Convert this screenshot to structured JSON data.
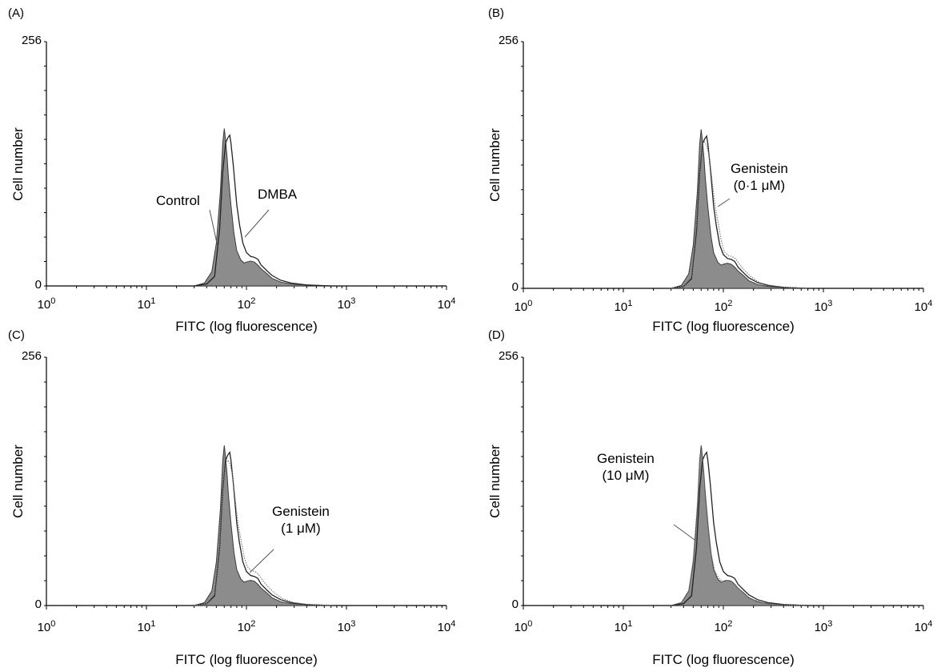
{
  "chart_data": [
    {
      "type": "area",
      "panel_label": "(A)",
      "xlabel": "FITC (log fluorescence)",
      "ylabel": "Cell number",
      "xscale": "log",
      "xlim": [
        1,
        10000
      ],
      "ylim": [
        0,
        256
      ],
      "x_ticks": [
        {
          "base": "10",
          "exp": "0"
        },
        {
          "base": "10",
          "exp": "1"
        },
        {
          "base": "10",
          "exp": "2"
        },
        {
          "base": "10",
          "exp": "3"
        },
        {
          "base": "10",
          "exp": "4"
        }
      ],
      "y_ticks": [
        "256",
        "0"
      ],
      "annotations": [
        {
          "lines": [
            "Control"
          ],
          "points_to": "filled"
        },
        {
          "lines": [
            "DMBA"
          ],
          "points_to": "outline"
        }
      ],
      "series": [
        {
          "name": "Control",
          "style": "filled",
          "x": [
            30,
            38,
            45,
            50,
            55,
            58,
            60,
            62,
            64,
            66,
            70,
            75,
            80,
            88,
            95,
            100,
            110,
            120,
            130,
            140,
            160,
            180,
            220,
            280,
            400,
            700
          ],
          "y": [
            0,
            3,
            15,
            45,
            100,
            150,
            165,
            152,
            135,
            115,
            85,
            55,
            37,
            27,
            24,
            25,
            26,
            25,
            22,
            18,
            13,
            8,
            4,
            2,
            1,
            0
          ]
        },
        {
          "name": "DMBA",
          "style": "outline",
          "x": [
            30,
            40,
            48,
            54,
            58,
            62,
            65,
            68,
            70,
            74,
            80,
            85,
            92,
            100,
            110,
            120,
            130,
            140,
            160,
            180,
            220,
            280,
            400,
            700
          ],
          "y": [
            0,
            2,
            10,
            60,
            120,
            150,
            155,
            158,
            150,
            125,
            85,
            65,
            45,
            35,
            31,
            30,
            28,
            22,
            16,
            11,
            6,
            3,
            1,
            0
          ]
        }
      ]
    },
    {
      "type": "area",
      "panel_label": "(B)",
      "xlabel": "FITC (log fluorescence)",
      "ylabel": "Cell number",
      "xscale": "log",
      "xlim": [
        1,
        10000
      ],
      "ylim": [
        0,
        256
      ],
      "x_ticks": [
        {
          "base": "10",
          "exp": "0"
        },
        {
          "base": "10",
          "exp": "1"
        },
        {
          "base": "10",
          "exp": "2"
        },
        {
          "base": "10",
          "exp": "3"
        },
        {
          "base": "10",
          "exp": "4"
        }
      ],
      "y_ticks": [
        "256",
        "0"
      ],
      "annotations": [
        {
          "lines": [
            "Genistein",
            "(0·1 μM)"
          ],
          "points_to": "dotted"
        }
      ],
      "series": [
        {
          "name": "Control",
          "style": "filled",
          "x": [
            30,
            38,
            45,
            50,
            55,
            58,
            60,
            62,
            64,
            66,
            70,
            75,
            80,
            88,
            95,
            100,
            110,
            120,
            130,
            140,
            160,
            180,
            220,
            280,
            400,
            700
          ],
          "y": [
            0,
            3,
            15,
            45,
            100,
            150,
            165,
            152,
            135,
            115,
            85,
            55,
            37,
            27,
            24,
            25,
            26,
            25,
            22,
            18,
            13,
            8,
            4,
            2,
            1,
            0
          ]
        },
        {
          "name": "DMBA",
          "style": "outline",
          "x": [
            30,
            40,
            48,
            54,
            58,
            62,
            65,
            68,
            70,
            74,
            80,
            85,
            92,
            100,
            110,
            120,
            130,
            140,
            160,
            180,
            220,
            280,
            400,
            700
          ],
          "y": [
            0,
            2,
            10,
            60,
            120,
            150,
            155,
            158,
            150,
            125,
            85,
            65,
            45,
            35,
            31,
            30,
            28,
            22,
            16,
            11,
            6,
            3,
            1,
            0
          ]
        },
        {
          "name": "Genistein (0·1 μM)",
          "style": "dotted",
          "x": [
            30,
            40,
            48,
            54,
            58,
            62,
            65,
            68,
            72,
            76,
            82,
            88,
            95,
            102,
            112,
            122,
            132,
            145,
            165,
            190,
            230,
            300,
            420,
            700
          ],
          "y": [
            0,
            2,
            12,
            65,
            125,
            150,
            152,
            148,
            138,
            118,
            88,
            70,
            50,
            38,
            34,
            33,
            31,
            25,
            18,
            12,
            6,
            3,
            1,
            0
          ]
        }
      ]
    },
    {
      "type": "area",
      "panel_label": "(C)",
      "xlabel": "FITC (log fluorescence)",
      "ylabel": "Cell number",
      "xscale": "log",
      "xlim": [
        1,
        10000
      ],
      "ylim": [
        0,
        256
      ],
      "x_ticks": [
        {
          "base": "10",
          "exp": "0"
        },
        {
          "base": "10",
          "exp": "1"
        },
        {
          "base": "10",
          "exp": "2"
        },
        {
          "base": "10",
          "exp": "3"
        },
        {
          "base": "10",
          "exp": "4"
        }
      ],
      "y_ticks": [
        "256",
        "0"
      ],
      "annotations": [
        {
          "lines": [
            "Genistein",
            "(1 μM)"
          ],
          "points_to": "dotted"
        }
      ],
      "series": [
        {
          "name": "Control",
          "style": "filled",
          "x": [
            30,
            38,
            45,
            50,
            55,
            58,
            60,
            62,
            64,
            66,
            70,
            75,
            80,
            88,
            95,
            100,
            110,
            120,
            130,
            140,
            160,
            180,
            220,
            280,
            400,
            700
          ],
          "y": [
            0,
            3,
            15,
            45,
            100,
            150,
            165,
            152,
            135,
            115,
            85,
            55,
            37,
            27,
            24,
            25,
            26,
            25,
            22,
            18,
            13,
            8,
            4,
            2,
            1,
            0
          ]
        },
        {
          "name": "DMBA",
          "style": "outline",
          "x": [
            30,
            40,
            48,
            54,
            58,
            62,
            65,
            68,
            70,
            74,
            80,
            85,
            92,
            100,
            110,
            120,
            130,
            140,
            160,
            180,
            220,
            280,
            400,
            700
          ],
          "y": [
            0,
            2,
            10,
            60,
            120,
            150,
            155,
            158,
            150,
            125,
            85,
            65,
            45,
            35,
            31,
            30,
            28,
            22,
            16,
            11,
            6,
            3,
            1,
            0
          ]
        },
        {
          "name": "Genistein (1 μM)",
          "style": "dotted",
          "x": [
            30,
            40,
            48,
            54,
            58,
            62,
            65,
            68,
            72,
            76,
            82,
            88,
            95,
            102,
            112,
            122,
            132,
            145,
            165,
            190,
            230,
            300,
            420,
            700
          ],
          "y": [
            0,
            2,
            12,
            62,
            122,
            146,
            150,
            147,
            136,
            116,
            86,
            68,
            50,
            40,
            36,
            35,
            32,
            26,
            19,
            13,
            7,
            3,
            1,
            0
          ]
        }
      ]
    },
    {
      "type": "area",
      "panel_label": "(D)",
      "xlabel": "FITC (log fluorescence)",
      "ylabel": "Cell number",
      "xscale": "log",
      "xlim": [
        1,
        10000
      ],
      "ylim": [
        0,
        256
      ],
      "x_ticks": [
        {
          "base": "10",
          "exp": "0"
        },
        {
          "base": "10",
          "exp": "1"
        },
        {
          "base": "10",
          "exp": "2"
        },
        {
          "base": "10",
          "exp": "3"
        },
        {
          "base": "10",
          "exp": "4"
        }
      ],
      "y_ticks": [
        "256",
        "0"
      ],
      "annotations": [
        {
          "lines": [
            "Genistein",
            "(10 μM)"
          ],
          "points_to": "dotted"
        }
      ],
      "series": [
        {
          "name": "Control",
          "style": "filled",
          "x": [
            30,
            38,
            45,
            50,
            55,
            58,
            60,
            62,
            64,
            66,
            70,
            75,
            80,
            88,
            95,
            100,
            110,
            120,
            130,
            140,
            160,
            180,
            220,
            280,
            400,
            700
          ],
          "y": [
            0,
            3,
            15,
            45,
            100,
            150,
            165,
            152,
            135,
            115,
            85,
            55,
            37,
            27,
            24,
            25,
            26,
            25,
            22,
            18,
            13,
            8,
            4,
            2,
            1,
            0
          ]
        },
        {
          "name": "DMBA",
          "style": "outline",
          "x": [
            30,
            40,
            48,
            54,
            58,
            62,
            65,
            68,
            70,
            74,
            80,
            85,
            92,
            100,
            110,
            120,
            130,
            140,
            160,
            180,
            220,
            280,
            400,
            700
          ],
          "y": [
            0,
            2,
            10,
            60,
            120,
            150,
            155,
            158,
            150,
            125,
            85,
            65,
            45,
            35,
            31,
            30,
            28,
            22,
            16,
            11,
            6,
            3,
            1,
            0
          ]
        },
        {
          "name": "Genistein (10 μM)",
          "style": "dotted",
          "x": [
            30,
            38,
            45,
            50,
            55,
            58,
            60,
            62,
            64,
            67,
            71,
            76,
            82,
            90,
            98,
            105,
            115,
            125,
            135,
            150,
            170,
            200,
            250,
            350,
            650
          ],
          "y": [
            0,
            3,
            14,
            48,
            105,
            148,
            160,
            150,
            132,
            110,
            80,
            52,
            36,
            28,
            25,
            26,
            26,
            24,
            20,
            15,
            10,
            6,
            3,
            1,
            0
          ]
        }
      ]
    }
  ]
}
